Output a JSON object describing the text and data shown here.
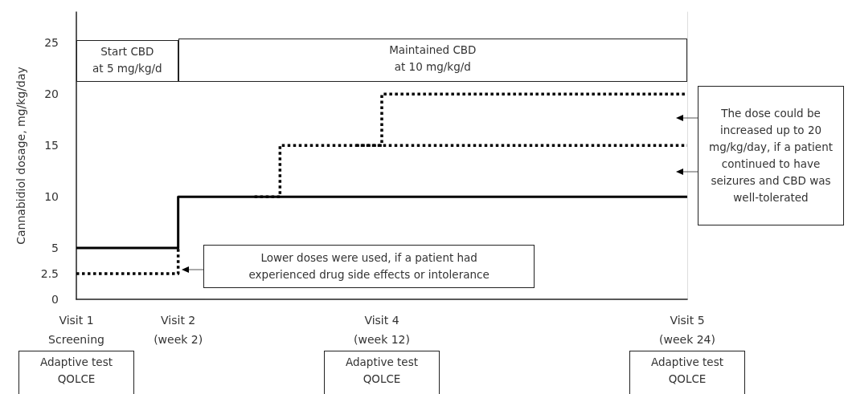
{
  "chart_data": {
    "type": "step",
    "ylabel": "Cannabidiol dosage, mg/kg/day",
    "marker": "none",
    "grid": false,
    "categories": [
      "Visit 1\nScreening",
      null,
      null,
      null,
      "Visit 2\n(week 2)",
      null,
      null,
      null,
      null,
      null,
      null,
      null,
      "Visit 4\n(week 12)",
      null,
      null,
      null,
      null,
      null,
      null,
      null,
      null,
      null,
      null,
      null,
      "Visit 5\n(week 24)"
    ],
    "ylim": [
      0,
      28
    ],
    "yticks": [
      0,
      2.5,
      5,
      10,
      15,
      20,
      25
    ],
    "series": [
      {
        "color": "#000000",
        "line_style": "solid",
        "values": [
          5,
          5,
          5,
          5,
          10,
          10,
          10,
          10,
          10,
          10,
          10,
          10,
          10,
          10,
          10,
          10,
          10,
          10,
          10,
          10,
          10,
          10,
          10,
          10,
          10
        ]
      },
      {
        "color": "#000000",
        "line_style": "dotted",
        "values": [
          2.5,
          2.5,
          2.5,
          2.5,
          5,
          null,
          null,
          null,
          null,
          null,
          null,
          null,
          null,
          null,
          null,
          null,
          null,
          null,
          null,
          null,
          null,
          null,
          null,
          null,
          null
        ]
      },
      {
        "color": "#000000",
        "line_style": "dotted",
        "values": [
          null,
          null,
          null,
          null,
          null,
          null,
          null,
          10,
          15,
          15,
          15,
          15,
          15,
          15,
          15,
          15,
          15,
          15,
          15,
          15,
          15,
          15,
          15,
          15,
          15
        ]
      },
      {
        "color": "#000000",
        "line_style": "dotted",
        "values": [
          null,
          null,
          null,
          null,
          null,
          null,
          null,
          null,
          null,
          null,
          null,
          15,
          20,
          20,
          20,
          20,
          20,
          20,
          20,
          20,
          20,
          20,
          20,
          20,
          20
        ]
      }
    ],
    "annotations": [
      "Start CBD\nat 5 mg/kg/d",
      "Maintained CBD\nat 10 mg/kg/d",
      "The dose could be increased up to 20 mg/kg/day, if a patient continued to have seizures and CBD was well-tolerated",
      "Lower doses were used, if a patient had experienced drug side effects or intolerance",
      "Adaptive test\nQOLCE",
      "Adaptive test\nQOLCE",
      "Adaptive test\nQOLCE"
    ]
  }
}
